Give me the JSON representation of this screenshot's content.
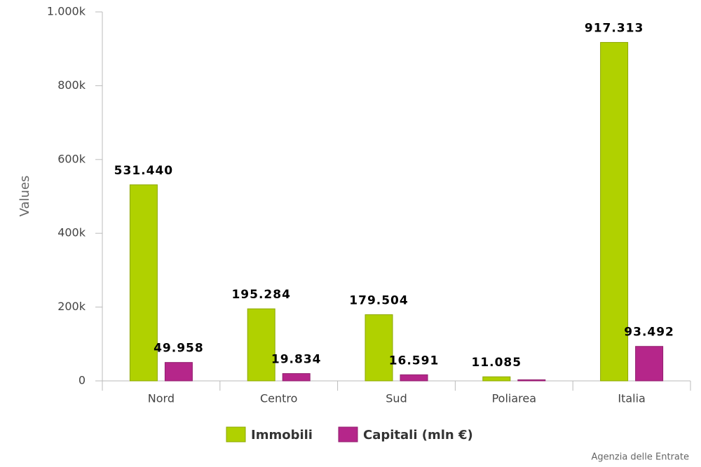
{
  "chart_data": {
    "type": "bar",
    "y_label": "Values",
    "credit": "Agenzia delle Entrate",
    "categories": [
      "Nord",
      "Centro",
      "Sud",
      "Poliarea",
      "Italia"
    ],
    "series": [
      {
        "name": "Immobili",
        "color": "#b0d100",
        "values": [
          531440,
          195284,
          179504,
          11085,
          917313
        ],
        "value_labels": [
          "531.440",
          "195.284",
          "179.504",
          "11.085",
          "917.313"
        ]
      },
      {
        "name": "Capitali (mln €)",
        "color": "#b5268a",
        "values": [
          49958,
          19834,
          16591,
          3000,
          93492
        ],
        "value_labels": [
          "49.958",
          "19.834",
          "16.591",
          null,
          "93.492"
        ]
      }
    ],
    "ylim": [
      0,
      1000000
    ],
    "yticks": [
      0,
      {
        "value": 200000,
        "label": "200k"
      },
      {
        "value": 400000,
        "label": "400k"
      },
      {
        "value": 600000,
        "label": "600k"
      },
      {
        "value": 800000,
        "label": "800k"
      },
      {
        "value": 1000000,
        "label": "1.000k"
      }
    ],
    "grid": false
  }
}
